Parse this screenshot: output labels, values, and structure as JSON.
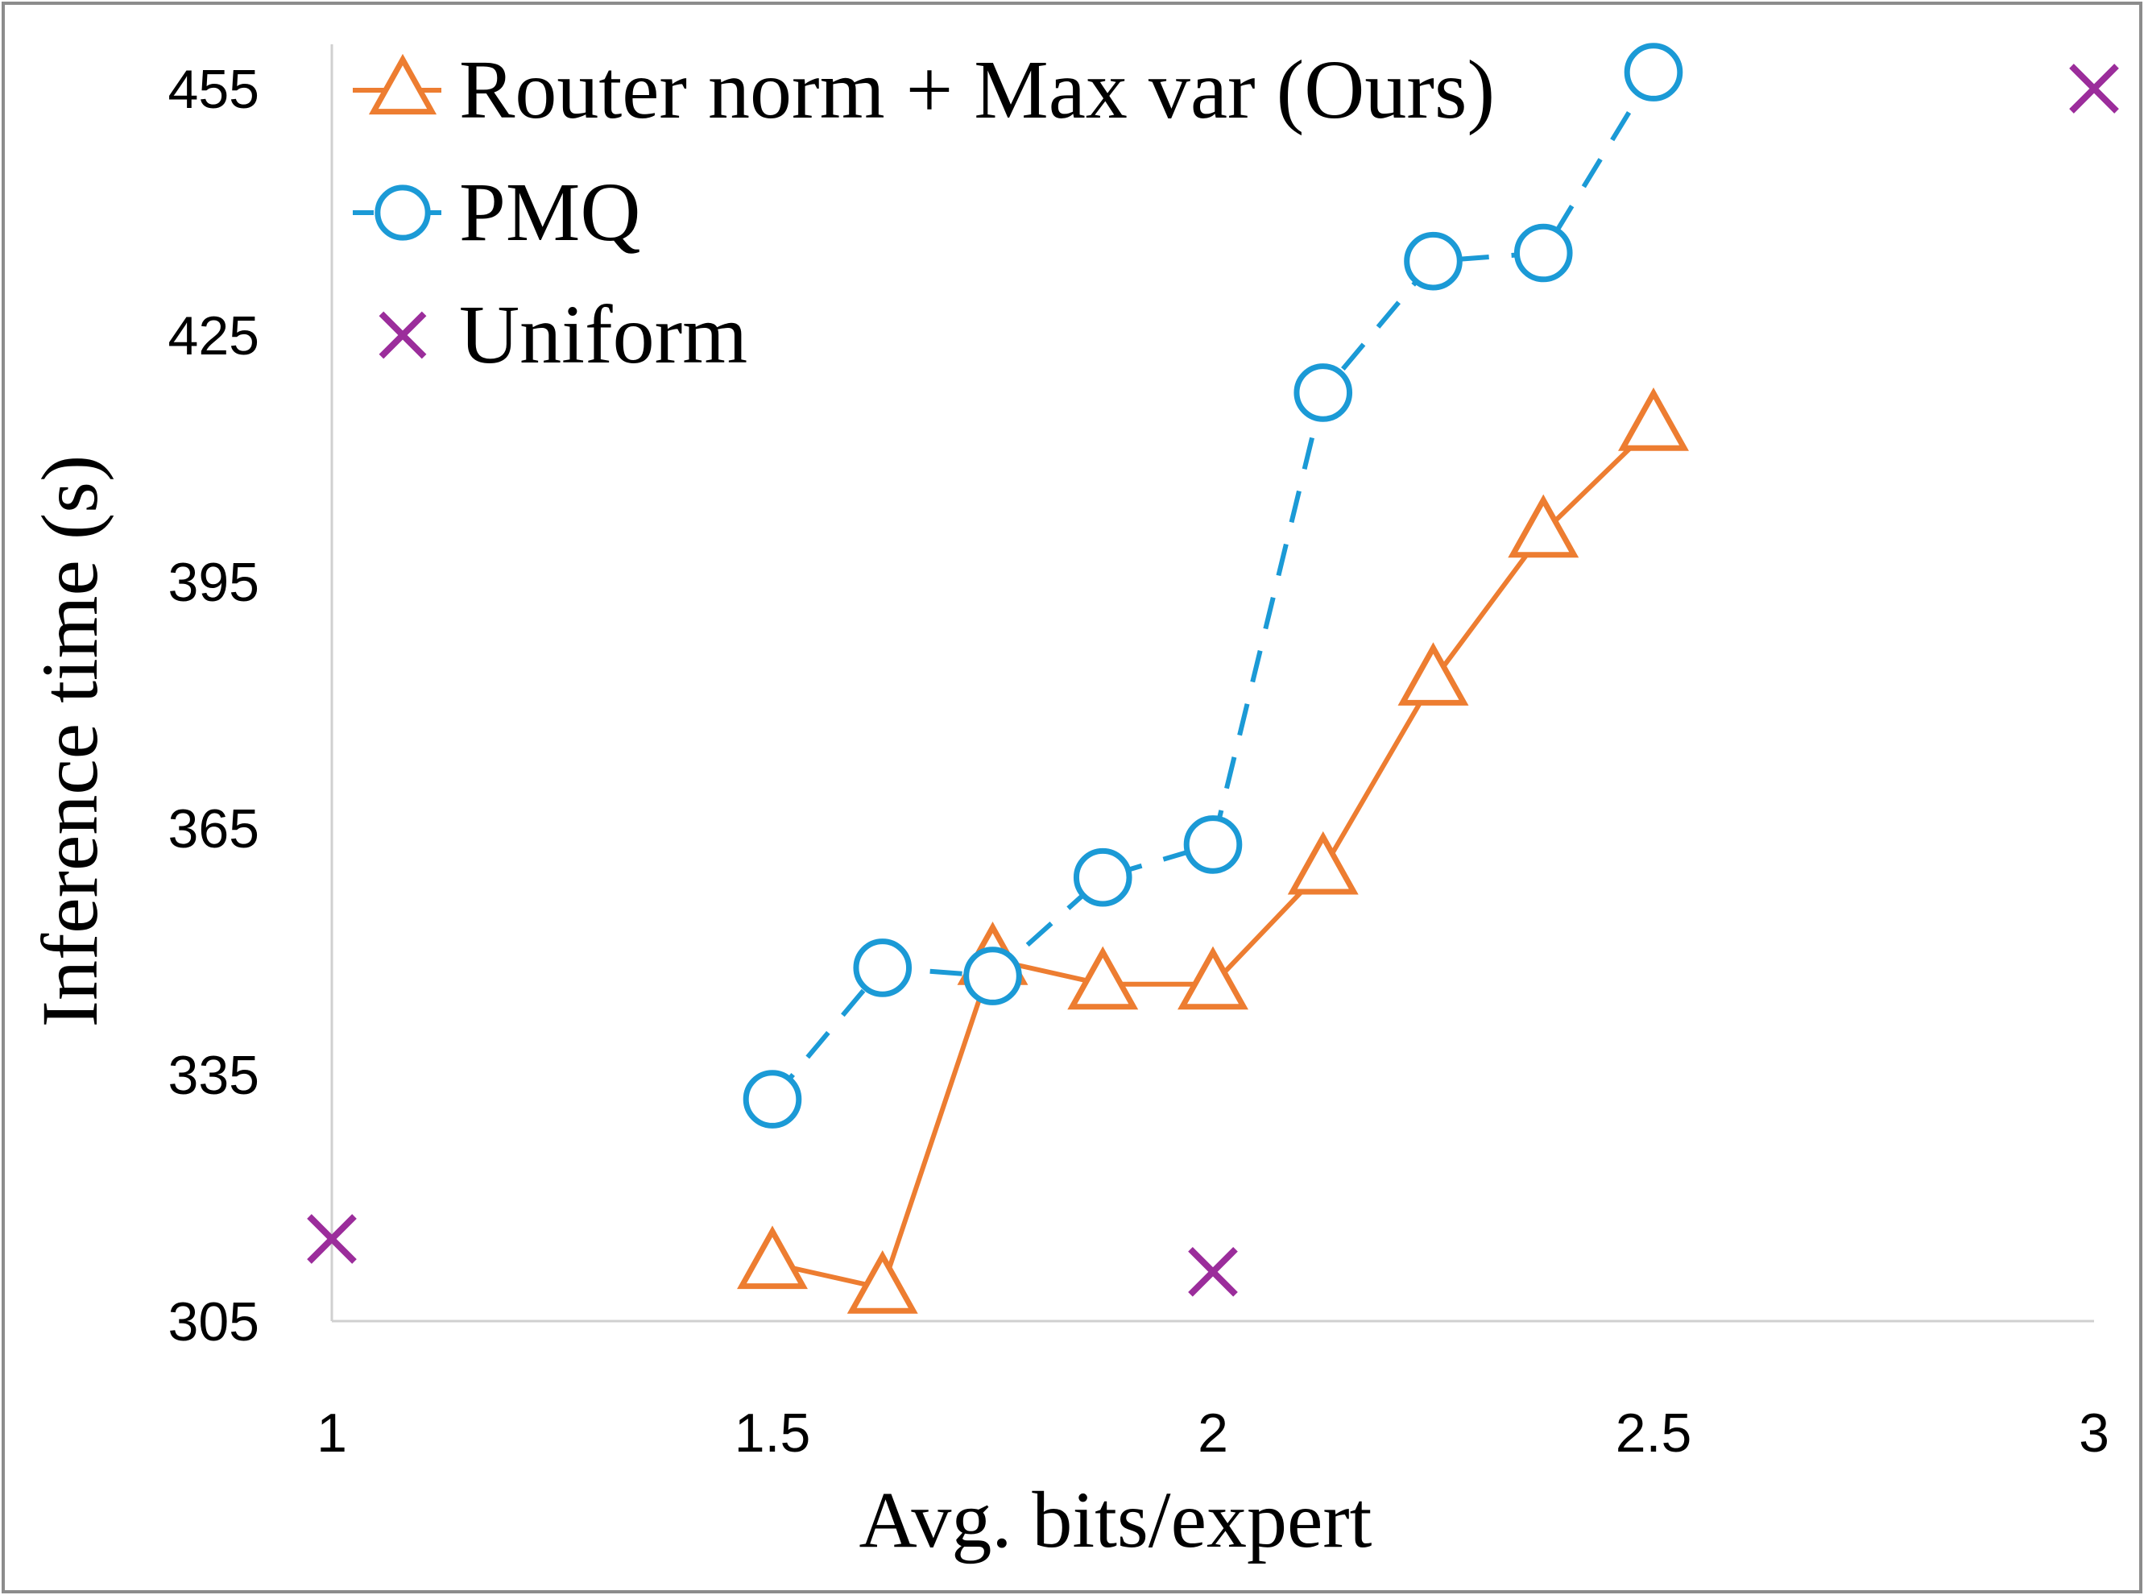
{
  "chart_data": {
    "type": "line",
    "xlabel": "Avg. bits/expert",
    "ylabel": "Inference time (s)",
    "xlim": [
      1,
      3
    ],
    "ylim": [
      305,
      455
    ],
    "x_ticks": [
      "1",
      "1.5",
      "2",
      "2.5",
      "3"
    ],
    "y_ticks": [
      "305",
      "335",
      "365",
      "395",
      "425",
      "455"
    ],
    "grid": false,
    "legend_position": "top-left",
    "series": [
      {
        "name": "Router norm + Max var (Ours)",
        "color": "#ED7D31",
        "marker": "triangle",
        "line": "solid",
        "x": [
          1.5,
          1.625,
          1.75,
          1.875,
          2.0,
          2.125,
          2.25,
          2.375,
          2.5
        ],
        "y": [
          312,
          309,
          349,
          346,
          346,
          360,
          383,
          401,
          414
        ]
      },
      {
        "name": "PMQ",
        "color": "#1B9AD6",
        "marker": "circle",
        "line": "dashed",
        "x": [
          1.5,
          1.625,
          1.75,
          1.875,
          2.0,
          2.125,
          2.25,
          2.375,
          2.5
        ],
        "y": [
          332,
          348,
          347,
          359,
          363,
          418,
          434,
          435,
          457
        ]
      },
      {
        "name": "Uniform",
        "color": "#9B2D9B",
        "marker": "x",
        "line": "none",
        "x": [
          1,
          2,
          3
        ],
        "y": [
          315,
          311,
          455
        ]
      }
    ]
  }
}
